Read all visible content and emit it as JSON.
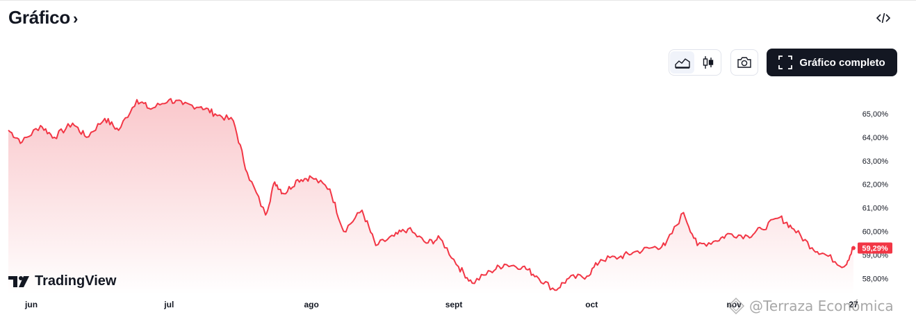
{
  "header": {
    "title": "Gráfico",
    "title_chevron": "›"
  },
  "toolbar": {
    "embed_icon": "code-embed-icon",
    "chart_types": [
      {
        "icon": "area-chart-icon",
        "active": true
      },
      {
        "icon": "candles-chart-icon",
        "active": false
      }
    ],
    "snapshot_icon": "camera-icon",
    "fullscreen_label": "Gráfico completo",
    "fullscreen_icon": "expand-corners-icon"
  },
  "branding": {
    "logo_text": "TradingView"
  },
  "watermark": {
    "text": "@Terraza Económica"
  },
  "colors": {
    "line": "#f23645",
    "area_top": "#f9c5c9",
    "area_bottom": "#ffffff",
    "badge_bg": "#f23645",
    "text": "#131722",
    "button_dark": "#131722"
  },
  "chart_data": {
    "type": "area",
    "title": "",
    "xlabel": "",
    "ylabel": "",
    "ylim": [
      57.3,
      66.3
    ],
    "y_ticks": [
      "65,00%",
      "64,00%",
      "63,00%",
      "62,00%",
      "61,00%",
      "60,00%",
      "59,00%",
      "58,00%"
    ],
    "y_tick_values": [
      65,
      64,
      63,
      62,
      61,
      60,
      59,
      58
    ],
    "x_labels": [
      "jun",
      "jul",
      "ago",
      "sept",
      "oct",
      "nov",
      "27"
    ],
    "x_label_dates": [
      "2024-06-01",
      "2024-07-01",
      "2024-08-01",
      "2024-09-01",
      "2024-10-01",
      "2024-11-01",
      "2024-11-27"
    ],
    "last_value": 59.29,
    "last_value_label": "59,29%",
    "series": [
      {
        "x": [
          "2024-05-27",
          "2024-05-30",
          "2024-06-03",
          "2024-06-06",
          "2024-06-10",
          "2024-06-13",
          "2024-06-17",
          "2024-06-20",
          "2024-06-24",
          "2024-06-27",
          "2024-07-01",
          "2024-07-04",
          "2024-07-08",
          "2024-07-11",
          "2024-07-15",
          "2024-07-18",
          "2024-07-22",
          "2024-07-24",
          "2024-07-26",
          "2024-07-29",
          "2024-08-01",
          "2024-08-05",
          "2024-08-08",
          "2024-08-12",
          "2024-08-15",
          "2024-08-19",
          "2024-08-22",
          "2024-08-26",
          "2024-08-29",
          "2024-09-02",
          "2024-09-05",
          "2024-09-09",
          "2024-09-12",
          "2024-09-16",
          "2024-09-19",
          "2024-09-23",
          "2024-09-26",
          "2024-09-30",
          "2024-10-03",
          "2024-10-07",
          "2024-10-10",
          "2024-10-14",
          "2024-10-17",
          "2024-10-21",
          "2024-10-24",
          "2024-10-28",
          "2024-10-31",
          "2024-11-04",
          "2024-11-07",
          "2024-11-11",
          "2024-11-14",
          "2024-11-18",
          "2024-11-21",
          "2024-11-25",
          "2024-11-27"
        ],
        "values": [
          64.3,
          63.8,
          64.5,
          64.0,
          64.6,
          64.0,
          64.8,
          64.3,
          65.6,
          65.2,
          65.6,
          65.4,
          65.3,
          65.0,
          64.7,
          62.5,
          60.7,
          62.1,
          61.6,
          62.2,
          62.3,
          61.8,
          60.0,
          60.9,
          59.4,
          59.8,
          60.1,
          59.5,
          59.7,
          58.5,
          57.8,
          58.3,
          58.6,
          58.5,
          58.1,
          57.5,
          58.0,
          58.1,
          58.8,
          58.9,
          59.1,
          59.3,
          59.4,
          60.8,
          59.4,
          59.6,
          59.9,
          59.8,
          60.1,
          60.6,
          60.1,
          59.3,
          59.0,
          58.5,
          59.29
        ]
      }
    ],
    "grid": false,
    "legend": "none"
  }
}
